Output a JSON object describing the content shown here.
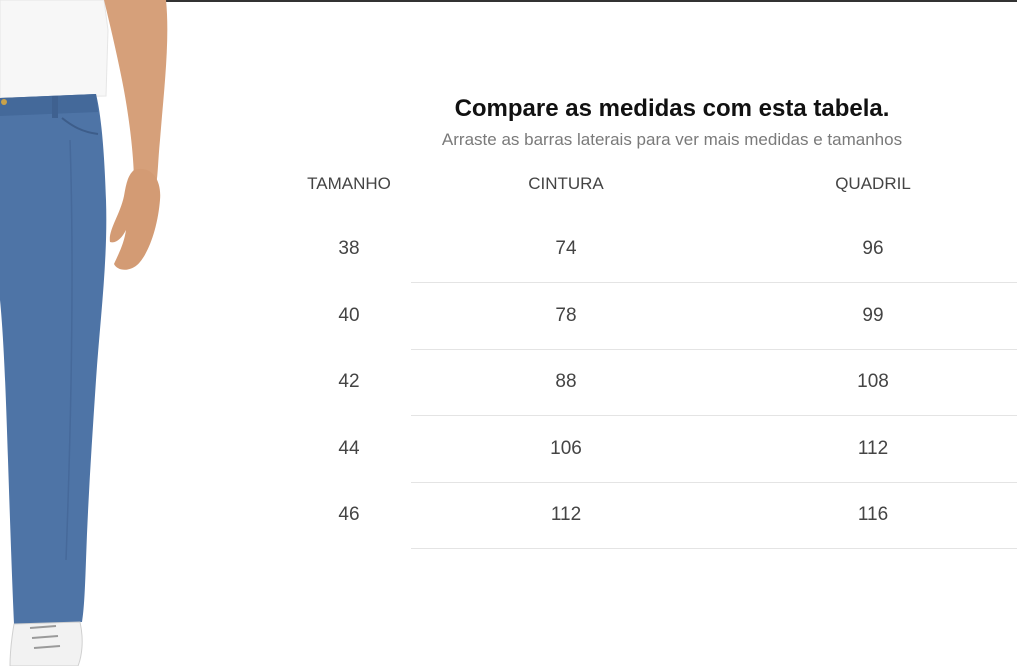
{
  "heading": "Compare as medidas com esta tabela.",
  "subheading": "Arraste as barras laterais para ver mais medidas e tamanhos",
  "columns": {
    "size": "TAMANHO",
    "waist": "CINTURA",
    "hip": "QUADRIL"
  },
  "rows": [
    {
      "size": "38",
      "waist": "74",
      "hip": "96"
    },
    {
      "size": "40",
      "waist": "78",
      "hip": "99"
    },
    {
      "size": "42",
      "waist": "88",
      "hip": "108"
    },
    {
      "size": "44",
      "waist": "106",
      "hip": "112"
    },
    {
      "size": "46",
      "waist": "112",
      "hip": "116"
    }
  ],
  "colors": {
    "jeans": "#4e74a6",
    "shirt": "#f7f7f7",
    "skin": "#d9a57e",
    "divider": "#e4e4e4"
  }
}
